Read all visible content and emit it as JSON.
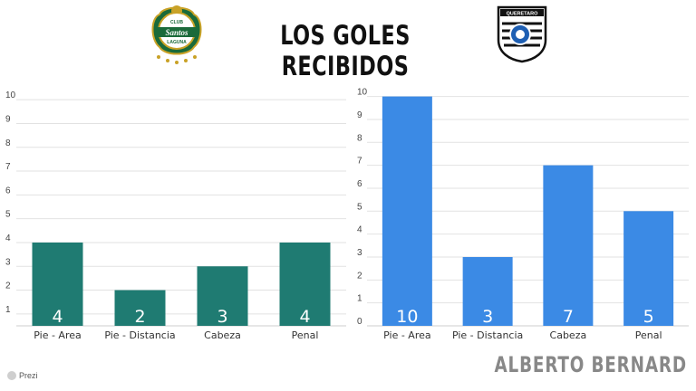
{
  "header": {
    "title": "LOS GOLES RECIBIDOS"
  },
  "logos": {
    "left_top_text": "CLUB",
    "left_main_text": "Santos",
    "left_bottom_text": "LAGUNA",
    "right_top_text": "QUERETARO"
  },
  "footer": {
    "credit": "ALBERTO BERNARD",
    "watermark": "Prezi"
  },
  "colors": {
    "left_bar": "#1f7b72",
    "right_bar": "#3b8ae5",
    "grid": "#e2e2e2",
    "tick": "#444444"
  },
  "chart_data": [
    {
      "type": "bar",
      "categories": [
        "Pie - Area",
        "Pie - Distancia",
        "Cabeza",
        "Penal"
      ],
      "values": [
        4,
        2,
        3,
        4
      ],
      "data_labels": [
        "4",
        "2",
        "3",
        "4"
      ],
      "yticks": [
        1,
        2,
        3,
        4,
        5,
        6,
        7,
        8,
        9,
        10
      ],
      "ylim": [
        0.5,
        10.5
      ],
      "grid": true,
      "color": "#1f7b72"
    },
    {
      "type": "bar",
      "categories": [
        "Pie - Area",
        "Pie - Distancia",
        "Cabeza",
        "Penal"
      ],
      "values": [
        10,
        3,
        7,
        5
      ],
      "data_labels": [
        "10",
        "3",
        "7",
        "5"
      ],
      "yticks": [
        0,
        1,
        2,
        3,
        4,
        5,
        6,
        7,
        8,
        9,
        10
      ],
      "ylim": [
        0,
        10.3
      ],
      "grid": true,
      "color": "#3b8ae5"
    }
  ]
}
